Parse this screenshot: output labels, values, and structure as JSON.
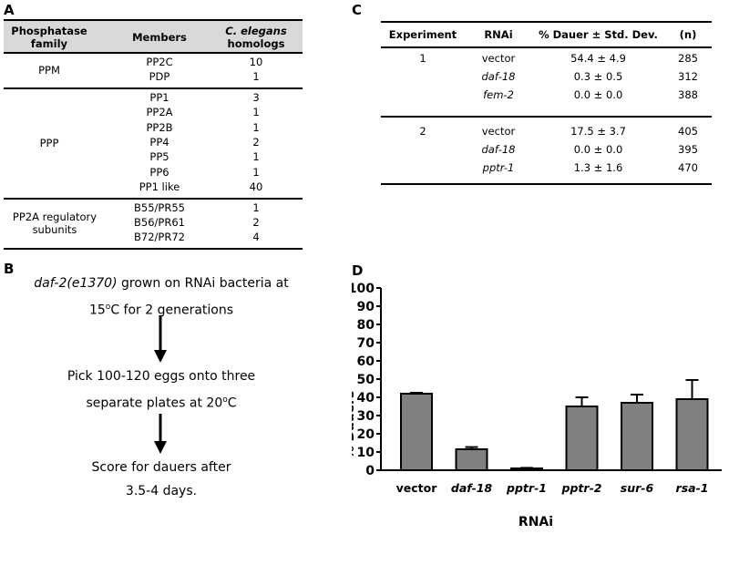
{
  "panelA": {
    "letter": "A",
    "headers": {
      "family": "Phosphatase family",
      "members": "Members",
      "homologs_italic": "C. elegans",
      "homologs_rest": "homologs"
    },
    "groups": [
      {
        "family": "PPM",
        "rows": [
          [
            "PP2C",
            "10"
          ],
          [
            "PDP",
            "1"
          ]
        ]
      },
      {
        "family": "PPP",
        "rows": [
          [
            "PP1",
            "3"
          ],
          [
            "PP2A",
            "1"
          ],
          [
            "PP2B",
            "1"
          ],
          [
            "PP4",
            "2"
          ],
          [
            "PP5",
            "1"
          ],
          [
            "PP6",
            "1"
          ],
          [
            "PP1 like",
            "40"
          ]
        ]
      },
      {
        "family": "PP2A regulatory subunits",
        "rows": [
          [
            "B55/PR55",
            "1"
          ],
          [
            "B56/PR61",
            "2"
          ],
          [
            "B72/PR72",
            "4"
          ]
        ]
      }
    ]
  },
  "panelB": {
    "letter": "B",
    "step1_italic": "daf-2(e1370)",
    "step1_rest": " grown on RNAi bacteria at",
    "step1_line2_pre": "15",
    "step1_line2_sup": "o",
    "step1_line2_post": "C for 2 generations",
    "step2_line1": "Pick 100-120 eggs onto three",
    "step2_line2_pre": "separate plates at 20",
    "step2_line2_sup": "o",
    "step2_line2_post": "C",
    "step3_line1": "Score for dauers after",
    "step3_line2": "3.5-4 days."
  },
  "panelC": {
    "letter": "C",
    "headers": [
      "Experiment",
      "RNAi",
      "% Dauer ± Std. Dev.",
      "(n)"
    ],
    "experiments": [
      {
        "id": "1",
        "rows": [
          {
            "rnai": "vector",
            "italic": false,
            "dauer": "54.4 ± 4.9",
            "n": "285"
          },
          {
            "rnai": "daf-18",
            "italic": true,
            "dauer": "0.3 ± 0.5",
            "n": "312"
          },
          {
            "rnai": "fem-2",
            "italic": true,
            "dauer": "0.0 ± 0.0",
            "n": "388"
          }
        ]
      },
      {
        "id": "2",
        "rows": [
          {
            "rnai": "vector",
            "italic": false,
            "dauer": "17.5 ± 3.7",
            "n": "405"
          },
          {
            "rnai": "daf-18",
            "italic": true,
            "dauer": "0.0 ± 0.0",
            "n": "395"
          },
          {
            "rnai": "pptr-1",
            "italic": true,
            "dauer": "1.3 ± 1.6",
            "n": "470"
          }
        ]
      }
    ]
  },
  "panelD": {
    "letter": "D",
    "chart_data": {
      "type": "bar",
      "categories": [
        "vector",
        "daf-18",
        "pptr-1",
        "pptr-2",
        "sur-6",
        "rsa-1"
      ],
      "italic": [
        false,
        true,
        true,
        true,
        true,
        true
      ],
      "values": [
        42,
        11.5,
        1,
        35,
        37,
        39
      ],
      "errors": [
        0.5,
        1.2,
        0.3,
        5,
        4.5,
        10.5
      ],
      "ylabel": "% Dauers",
      "xlabel": "RNAi",
      "ylim": [
        0,
        100
      ],
      "yticks": [
        0,
        10,
        20,
        30,
        40,
        50,
        60,
        70,
        80,
        90,
        100
      ],
      "bar_color": "#808080",
      "grid": false
    }
  }
}
